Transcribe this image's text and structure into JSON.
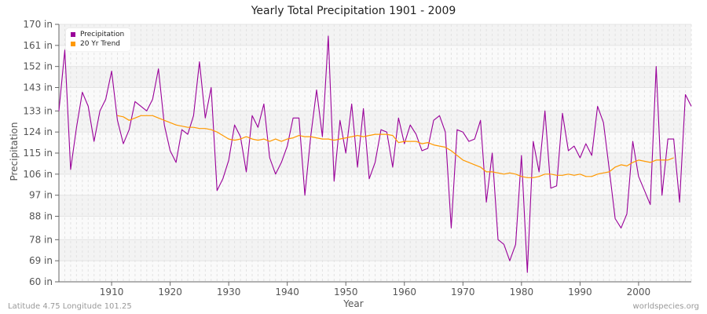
{
  "chart": {
    "title": "Yearly Total Precipitation 1901 - 2009",
    "xlabel": "Year",
    "ylabel": "Precipitation",
    "footer_left": "Latitude 4.75 Longitude 101.25",
    "footer_right": "worldspecies.org",
    "legend": [
      {
        "label": "Precipitation",
        "color": "#990099"
      },
      {
        "label": "20 Yr Trend",
        "color": "#ff9900"
      }
    ]
  },
  "chart_data": {
    "type": "line",
    "title": "Yearly Total Precipitation 1901 - 2009",
    "xlabel": "Year",
    "ylabel": "Precipitation",
    "ylim": [
      60,
      170
    ],
    "xlim": [
      1901,
      2009
    ],
    "y_ticks": [
      "60 in",
      "69 in",
      "78 in",
      "88 in",
      "97 in",
      "106 in",
      "115 in",
      "124 in",
      "133 in",
      "143 in",
      "152 in",
      "161 in",
      "170 in"
    ],
    "x_ticks": [
      "1910",
      "1920",
      "1930",
      "1940",
      "1950",
      "1960",
      "1970",
      "1980",
      "1990",
      "2000"
    ],
    "legend_position": "top-left",
    "grid": true,
    "series": [
      {
        "name": "Precipitation",
        "color": "#990099",
        "start_year": 1901,
        "values": [
          133,
          159,
          108,
          126,
          141,
          135,
          120,
          133,
          138,
          150,
          129,
          119,
          125,
          137,
          135,
          133,
          138,
          151,
          127,
          116,
          111,
          125,
          123,
          131,
          154,
          130,
          143,
          99,
          104,
          112,
          127,
          122,
          107,
          131,
          126,
          136,
          113,
          106,
          111,
          118,
          130,
          130,
          97,
          122,
          142,
          122,
          165,
          103,
          129,
          115,
          136,
          109,
          134,
          104,
          111,
          125,
          124,
          109,
          130,
          119,
          127,
          123,
          116,
          117,
          129,
          131,
          124,
          83,
          125,
          124,
          120,
          121,
          129,
          94,
          115,
          78,
          76,
          69,
          76,
          114,
          64,
          120,
          107,
          133,
          100,
          101,
          132,
          116,
          118,
          113,
          119,
          114,
          135,
          128,
          108,
          87,
          83,
          89,
          120,
          105,
          99,
          93,
          152,
          97,
          121,
          121,
          94,
          140,
          135
        ]
      },
      {
        "name": "20 Yr Trend",
        "color": "#ff9900",
        "start_year": 1911,
        "values": [
          131,
          130.5,
          129,
          130,
          131,
          131,
          131,
          130,
          129,
          128,
          127,
          126.5,
          126,
          126,
          125.5,
          125.5,
          125,
          124,
          122.5,
          121,
          120.5,
          121,
          122,
          121,
          120.5,
          121,
          120,
          121,
          120,
          121,
          121.5,
          122.5,
          122,
          122,
          121.5,
          121,
          121,
          120.5,
          121,
          121.5,
          122,
          122.5,
          122,
          122.5,
          123,
          123,
          123,
          122.5,
          119.5,
          120,
          120,
          120,
          119,
          119.5,
          118.5,
          118,
          117.5,
          116,
          114,
          112,
          111,
          110,
          109,
          107,
          107,
          106.5,
          106,
          106.5,
          106,
          105,
          104.5,
          104.5,
          105,
          106,
          106,
          105.5,
          105.5,
          106,
          105.5,
          106,
          105,
          105,
          106,
          106.5,
          107,
          109,
          110,
          109.5,
          111,
          112,
          111.5,
          111,
          112,
          112,
          112,
          113
        ]
      }
    ]
  }
}
